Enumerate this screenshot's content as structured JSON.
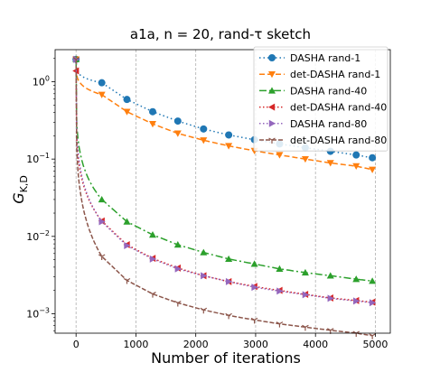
{
  "chart_data": {
    "type": "line",
    "title": "a1a, n = 20, rand-τ sketch",
    "xlabel": "Number of iterations",
    "ylabel": "G_{K,D}",
    "ylabel_main": "G",
    "ylabel_sub": "K,D",
    "xlim": [
      -350,
      5250
    ],
    "ylim": [
      0.00056,
      2.6
    ],
    "yscale": "log",
    "grid": "x-only, dashed",
    "legend_position": "top-right",
    "x_ticks": [
      0,
      1000,
      2000,
      3000,
      4000,
      5000
    ],
    "x_tick_labels": [
      "0",
      "1000",
      "2000",
      "3000",
      "4000",
      "5000"
    ],
    "y_ticks": [
      0.001,
      0.01,
      0.1,
      1
    ],
    "y_tick_labels": [
      {
        "base": "10",
        "exp": "−3"
      },
      {
        "base": "10",
        "exp": "−2"
      },
      {
        "base": "10",
        "exp": "−1"
      },
      {
        "base": "10",
        "exp": "0"
      }
    ],
    "series": [
      {
        "name": "DASHA rand-1",
        "color": "#1f77b4",
        "dash": "1.5,3",
        "marker": "circle",
        "x": [
          0,
          430,
          850,
          1280,
          1700,
          2130,
          2550,
          2980,
          3400,
          3830,
          4250,
          4680,
          4950
        ],
        "y": [
          1.95,
          0.97,
          0.59,
          0.41,
          0.31,
          0.245,
          0.205,
          0.178,
          0.157,
          0.14,
          0.126,
          0.113,
          0.104
        ]
      },
      {
        "name": "det-DASHA rand-1",
        "color": "#ff7f0e",
        "dash": "6,3",
        "marker": "triangle-down",
        "x": [
          0,
          430,
          850,
          1280,
          1700,
          2130,
          2550,
          2980,
          3400,
          3830,
          4250,
          4680,
          4950
        ],
        "y": [
          1.95,
          0.68,
          0.41,
          0.285,
          0.215,
          0.175,
          0.148,
          0.128,
          0.113,
          0.1,
          0.089,
          0.081,
          0.073
        ]
      },
      {
        "name": "DASHA rand-40",
        "color": "#2ca02c",
        "dash": "8,3,2,3",
        "marker": "triangle-up",
        "x": [
          0,
          430,
          850,
          1280,
          1700,
          2130,
          2550,
          2980,
          3400,
          3830,
          4250,
          4680,
          4950
        ],
        "y": [
          1.95,
          0.03,
          0.0155,
          0.0105,
          0.0078,
          0.0062,
          0.0051,
          0.0044,
          0.0038,
          0.0034,
          0.0031,
          0.0028,
          0.00265
        ]
      },
      {
        "name": "det-DASHA rand-40",
        "color": "#d62728",
        "dash": "1.5,2.5",
        "marker": "triangle-left",
        "x": [
          0,
          430,
          850,
          1280,
          1700,
          2130,
          2550,
          2980,
          3400,
          3830,
          4250,
          4680,
          4950
        ],
        "y": [
          1.38,
          0.0158,
          0.0078,
          0.0052,
          0.0039,
          0.0031,
          0.0026,
          0.00225,
          0.002,
          0.00178,
          0.0016,
          0.00148,
          0.00141
        ]
      },
      {
        "name": "DASHA rand-80",
        "color": "#9467bd",
        "dash": "1.5,2.5",
        "marker": "triangle-right",
        "x": [
          0,
          430,
          850,
          1280,
          1700,
          2130,
          2550,
          2980,
          3400,
          3830,
          4250,
          4680,
          4950
        ],
        "y": [
          1.95,
          0.0155,
          0.0076,
          0.0051,
          0.0038,
          0.0031,
          0.0026,
          0.0022,
          0.00196,
          0.00176,
          0.00158,
          0.00146,
          0.00139
        ]
      },
      {
        "name": "det-DASHA rand-80",
        "color": "#8c564b",
        "dash": "5,2",
        "marker": "tri-down",
        "x": [
          0,
          430,
          850,
          1280,
          1700,
          2130,
          2550,
          2980,
          3400,
          3830,
          4250,
          4680,
          4950
        ],
        "y": [
          1.95,
          0.0055,
          0.0027,
          0.0018,
          0.00138,
          0.00112,
          0.00095,
          0.00083,
          0.00074,
          0.00067,
          0.00061,
          0.00056,
          0.00052
        ]
      }
    ]
  }
}
